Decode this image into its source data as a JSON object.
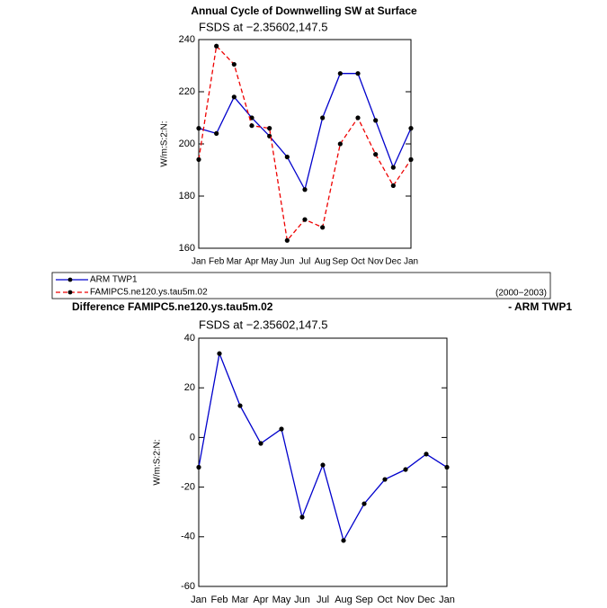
{
  "chart_data": [
    {
      "type": "line",
      "title": "Annual Cycle of Downwelling SW at Surface",
      "subtitle": "FSDS at −2.35602,147.5",
      "y_label": "W/m:S:2:N:",
      "categories": [
        "Jan",
        "Feb",
        "Mar",
        "Apr",
        "May",
        "Jun",
        "Jul",
        "Aug",
        "Sep",
        "Oct",
        "Nov",
        "Dec",
        "Jan"
      ],
      "series": [
        {
          "name": "ARM TWP1",
          "color": "#0000cc",
          "line_style": "solid",
          "values": [
            206,
            204,
            218,
            210,
            203,
            195,
            182.5,
            210,
            227,
            227,
            209,
            191,
            206
          ]
        },
        {
          "name": "FAMIPC5.ne120.ys.tau5m.02",
          "color": "#ee0000",
          "line_style": "dashed",
          "values": [
            194,
            237.5,
            230.5,
            207,
            206,
            163,
            171,
            168,
            200,
            210,
            196,
            184,
            194
          ]
        }
      ],
      "legend_note": "(2000−2003)",
      "ylim": [
        160,
        240
      ],
      "yticks": [
        160,
        180,
        200,
        220,
        240
      ]
    },
    {
      "type": "line",
      "title": "Difference FAMIPC5.ne120.ys.tau5m.02",
      "title_right": "- ARM TWP1",
      "subtitle": "FSDS at −2.35602,147.5",
      "y_label": "W/m:S:2:N:",
      "categories": [
        "Jan",
        "Feb",
        "Mar",
        "Apr",
        "May",
        "Jun",
        "Jul",
        "Aug",
        "Sep",
        "Oct",
        "Nov",
        "Dec",
        "Jan"
      ],
      "series": [
        {
          "color": "#0000cc",
          "line_style": "solid",
          "values": [
            -12,
            33.8,
            12.8,
            -2.4,
            3.4,
            -32.1,
            -11.1,
            -41.5,
            -26.7,
            -16.9,
            -12.9,
            -6.7,
            -12
          ]
        }
      ],
      "ylim": [
        -60,
        40
      ],
      "yticks": [
        -60,
        -40,
        -20,
        0,
        20,
        40
      ]
    }
  ]
}
